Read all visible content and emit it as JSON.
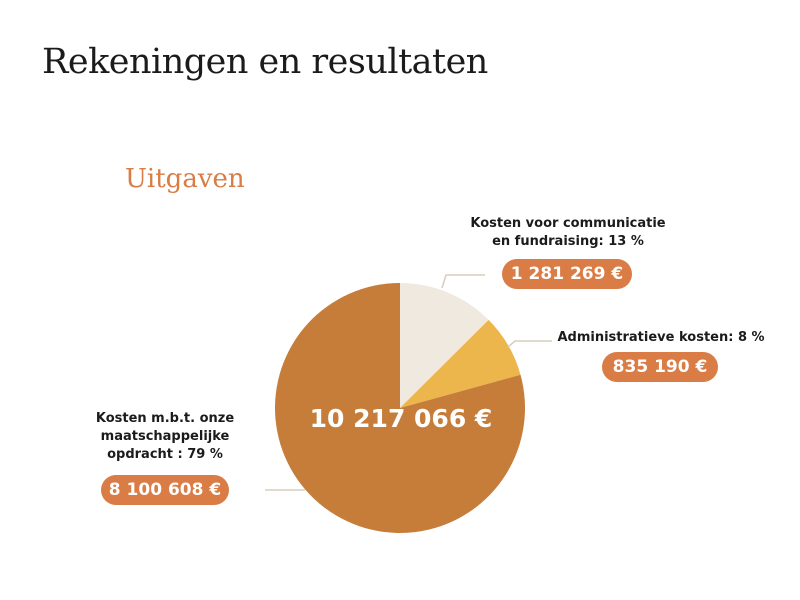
{
  "title": "Rekeningen en resultaten",
  "chart_data": {
    "type": "pie",
    "title": "Uitgaven",
    "total_label": "10 217 066 €",
    "slices": [
      {
        "label": "Kosten voor communicatie en fundraising: 13 %",
        "label_lines": [
          "Kosten voor communicatie",
          "en fundraising: 13 %"
        ],
        "percent": 13,
        "value": 1281269,
        "value_label": "1 281 269 €",
        "color": "#EFE9E0"
      },
      {
        "label": "Administratieve kosten: 8 %",
        "label_lines": [
          "Administratieve kosten: 8 %"
        ],
        "percent": 8,
        "value": 835190,
        "value_label": "835 190 €",
        "color": "#EDB64C"
      },
      {
        "label": "Kosten m.b.t. onze maatschappelijke opdracht : 79 %",
        "label_lines": [
          "Kosten m.b.t. onze",
          "maatschappelijke",
          "opdracht : 79 %"
        ],
        "percent": 79,
        "value": 8100608,
        "value_label": "8 100 608 €",
        "color": "#C77D3A"
      }
    ],
    "start_angle": "top",
    "direction": "clockwise",
    "badge_color": "#D97C45",
    "leader_color": "#D8CDBB"
  }
}
